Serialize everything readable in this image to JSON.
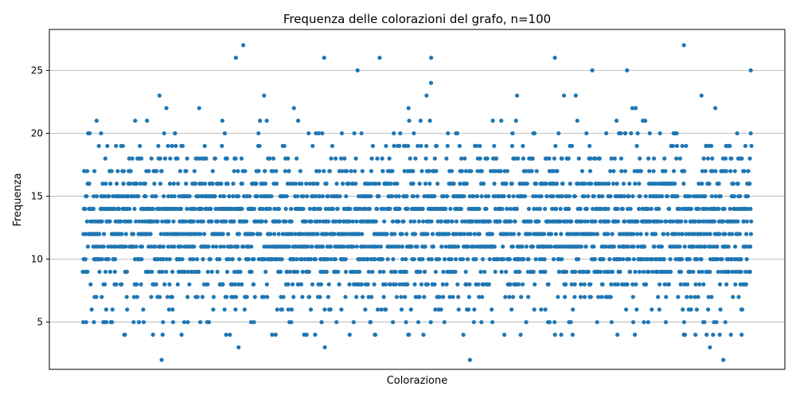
{
  "chart_data": {
    "type": "scatter",
    "title": "Frequenza delle colorazioni del grafo, n=100",
    "xlabel": "Colorazione",
    "ylabel": "Frequenza",
    "ylim": [
      1.25,
      28.25
    ],
    "yticks": [
      5,
      10,
      15,
      20,
      25
    ],
    "xticks_visible": false,
    "grid": "y",
    "marker_color": "#1f77b4",
    "grid_color": "#b0b0b0",
    "n_points": 3000,
    "dense_band": [
      7,
      18
    ],
    "series": [
      {
        "values_note_free_outliers": [
          {
            "x": 0.118,
            "y": 2
          },
          {
            "x": 0.233,
            "y": 3
          },
          {
            "x": 0.362,
            "y": 3
          },
          {
            "x": 0.579,
            "y": 2
          },
          {
            "x": 0.938,
            "y": 3
          },
          {
            "x": 0.958,
            "y": 2
          },
          {
            "x": 0.229,
            "y": 26
          },
          {
            "x": 0.24,
            "y": 27
          },
          {
            "x": 0.361,
            "y": 26
          },
          {
            "x": 0.411,
            "y": 25
          },
          {
            "x": 0.444,
            "y": 26
          },
          {
            "x": 0.521,
            "y": 26
          },
          {
            "x": 0.706,
            "y": 26
          },
          {
            "x": 0.762,
            "y": 25
          },
          {
            "x": 0.814,
            "y": 25
          },
          {
            "x": 0.899,
            "y": 27
          },
          {
            "x": 0.999,
            "y": 25
          }
        ]
      }
    ]
  }
}
